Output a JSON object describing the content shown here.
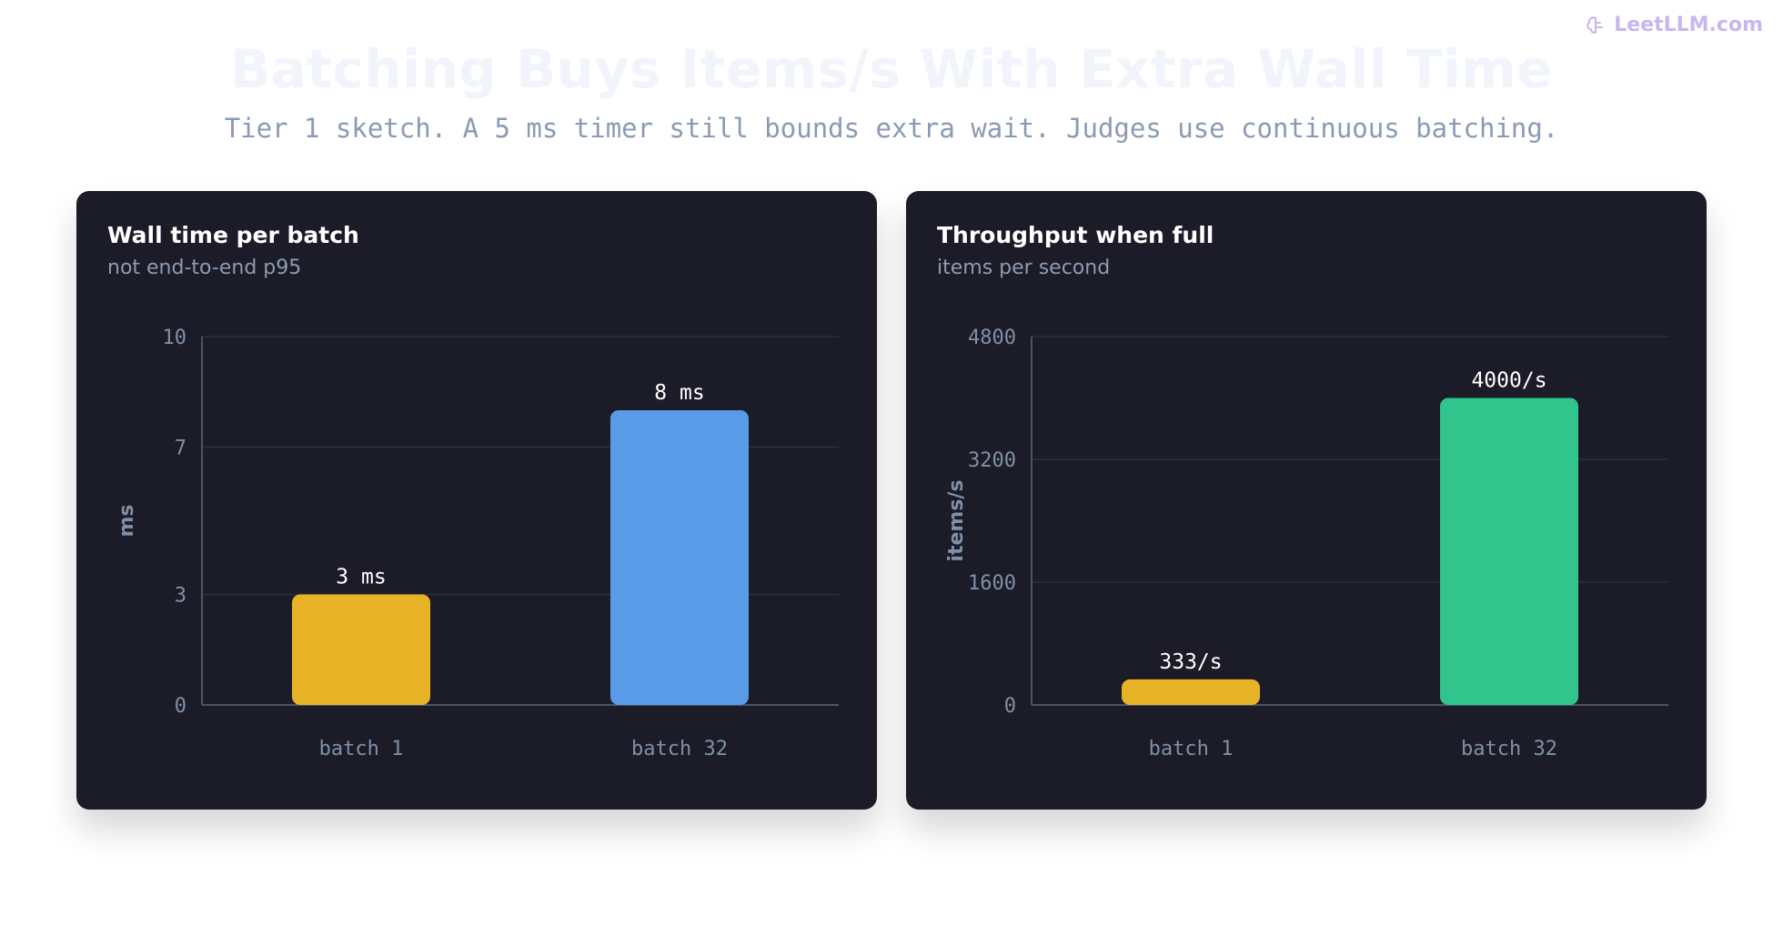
{
  "brand": {
    "name": "LeetLLM.com",
    "icon": "brain-icon",
    "color": "#c9b5f0"
  },
  "title": "Batching Buys Items/s With Extra Wall Time",
  "subtitle": "Tier 1 sketch. A 5 ms timer still bounds extra wait. Judges use continuous batching.",
  "chart_data": [
    {
      "type": "bar",
      "title": "Wall time per batch",
      "subtitle": "not end-to-end p95",
      "ylabel": "ms",
      "categories": [
        "batch 1",
        "batch 32"
      ],
      "values": [
        3,
        8
      ],
      "value_labels": [
        "3 ms",
        "8 ms"
      ],
      "colors": [
        "#e8b227",
        "#5a9be8"
      ],
      "yticks": [
        0,
        3,
        7,
        10
      ],
      "ylim": [
        0,
        10
      ],
      "grid": true
    },
    {
      "type": "bar",
      "title": "Throughput when full",
      "subtitle": "items per second",
      "ylabel": "items/s",
      "categories": [
        "batch 1",
        "batch 32"
      ],
      "values": [
        333,
        4000
      ],
      "value_labels": [
        "333/s",
        "4000/s"
      ],
      "colors": [
        "#e8b227",
        "#31c48d"
      ],
      "yticks": [
        0,
        1600,
        3200,
        4800
      ],
      "ylim": [
        0,
        4800
      ],
      "grid": true
    }
  ]
}
